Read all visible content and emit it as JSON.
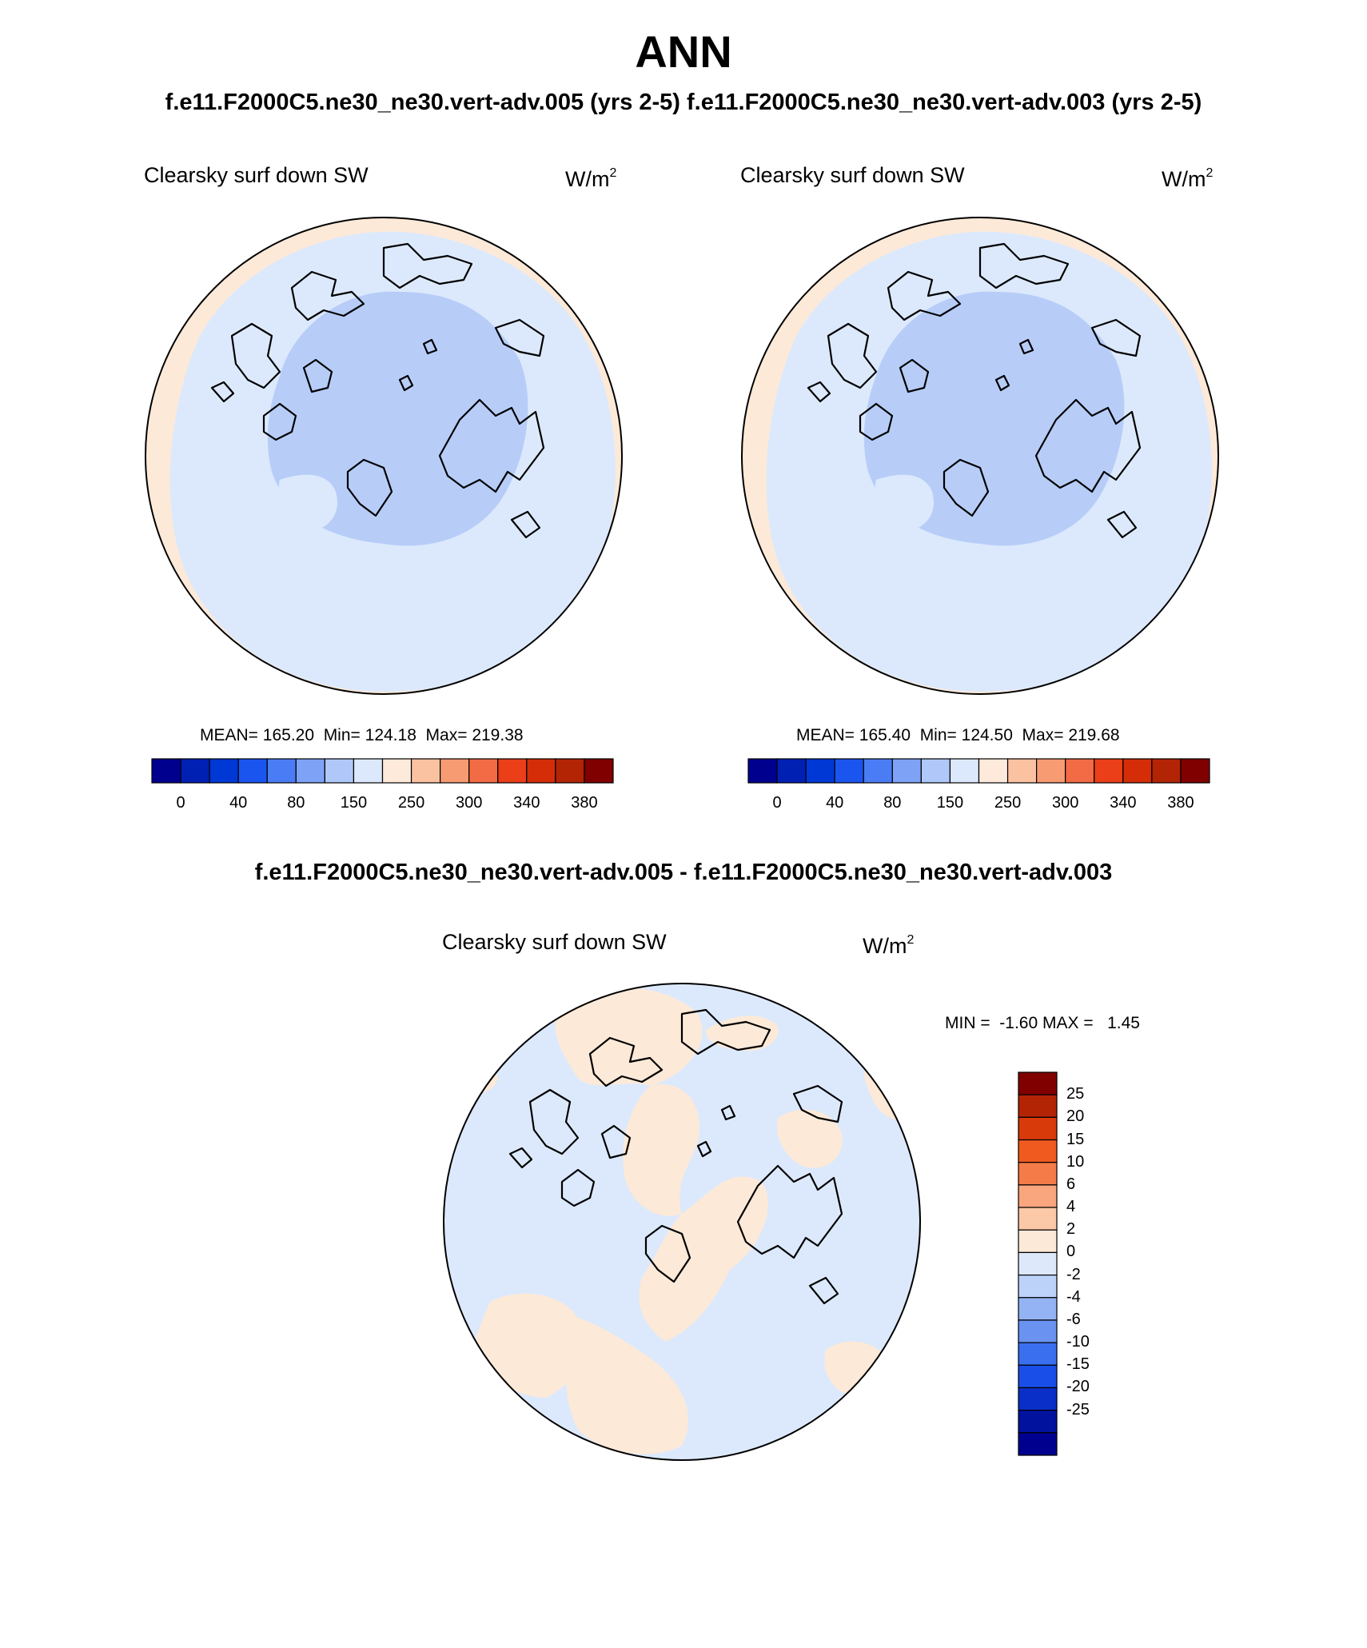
{
  "title": "ANN",
  "case_titles": "f.e11.F2000C5.ne30_ne30.vert-adv.005 (yrs 2-5)  f.e11.F2000C5.ne30_ne30.vert-adv.003 (yrs 2-5)",
  "diff_title": "f.e11.F2000C5.ne30_ne30.vert-adv.005 - f.e11.F2000C5.ne30_ne30.vert-adv.003",
  "panels": [
    {
      "variable": "Clearsky surf down SW",
      "units_base": "W/m",
      "units_exp": "2",
      "mean_label": "MEAN=",
      "mean": "165.20",
      "min_label": "Min=",
      "min": "124.18",
      "max_label": "Max=",
      "max": "219.38"
    },
    {
      "variable": "Clearsky surf down SW",
      "units_base": "W/m",
      "units_exp": "2",
      "mean_label": "MEAN=",
      "mean": "165.40",
      "min_label": "Min=",
      "min": "124.50",
      "max_label": "Max=",
      "max": "219.68"
    },
    {
      "variable": "Clearsky surf down SW",
      "units_base": "W/m",
      "units_exp": "2",
      "min_label": "MIN =",
      "min": "-1.60",
      "max_label": "MAX =",
      "max": "1.45"
    }
  ],
  "colorbar_main": {
    "colors": [
      "#00008f",
      "#0020b4",
      "#0038d6",
      "#1a55f0",
      "#4a7df5",
      "#7ea2f5",
      "#b0c8f9",
      "#dce9fc",
      "#fdeadb",
      "#fbc2a2",
      "#f79b73",
      "#f26b44",
      "#ea3f18",
      "#d42d07",
      "#b32405",
      "#800000"
    ],
    "labels": [
      "0",
      "40",
      "80",
      "150",
      "250",
      "300",
      "340",
      "380"
    ]
  },
  "colorbar_diff": {
    "colors": [
      "#800000",
      "#b32405",
      "#d93a0a",
      "#f05a1f",
      "#f57c49",
      "#f9a57e",
      "#fcc9a8",
      "#fde9d8",
      "#dde9fb",
      "#bcd2f8",
      "#93b3f4",
      "#6a93f1",
      "#3a6ff0",
      "#1a4ee8",
      "#0a2ec8",
      "#00129e",
      "#00008f"
    ],
    "labels": [
      "25",
      "20",
      "15",
      "10",
      "6",
      "4",
      "2",
      "0",
      "-2",
      "-4",
      "-6",
      "-10",
      "-15",
      "-20",
      "-25"
    ]
  },
  "map_colors": {
    "outer": "#fde9d8",
    "mid": "#dce9fc",
    "inner": "#b7cdf8",
    "diff_neg": "#dce9fc",
    "diff_pos": "#fde9d8"
  },
  "chart_data": [
    {
      "type": "polar_map",
      "title": "Clearsky surf down SW",
      "units": "W/m2",
      "mean": 165.2,
      "min": 124.18,
      "max": 219.38,
      "levels": [
        0,
        40,
        80,
        150,
        250,
        300,
        340,
        380
      ]
    },
    {
      "type": "polar_map",
      "title": "Clearsky surf down SW",
      "units": "W/m2",
      "mean": 165.4,
      "min": 124.5,
      "max": 219.68,
      "levels": [
        0,
        40,
        80,
        150,
        250,
        300,
        340,
        380
      ]
    },
    {
      "type": "polar_map",
      "title": "Clearsky surf down SW",
      "units": "W/m2",
      "min": -1.6,
      "max": 1.45,
      "levels": [
        25,
        20,
        15,
        10,
        6,
        4,
        2,
        0,
        -2,
        -4,
        -6,
        -10,
        -15,
        -20,
        -25
      ]
    }
  ]
}
